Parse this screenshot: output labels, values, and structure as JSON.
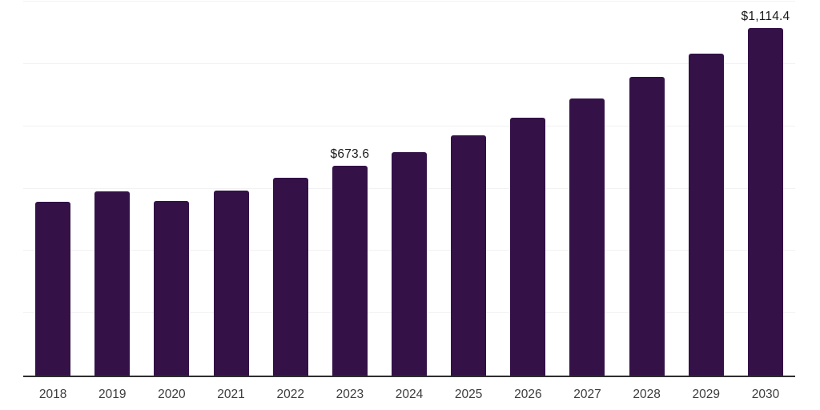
{
  "chart_data": {
    "type": "bar",
    "title": "",
    "xlabel": "",
    "ylabel": "",
    "categories": [
      "2018",
      "2019",
      "2020",
      "2021",
      "2022",
      "2023",
      "2024",
      "2025",
      "2026",
      "2027",
      "2028",
      "2029",
      "2030"
    ],
    "values": [
      558,
      590,
      560,
      594,
      634,
      673.6,
      717,
      771,
      828,
      890,
      958,
      1034,
      1114.4
    ],
    "labeled_points": [
      {
        "category": "2023",
        "label": "$673.6"
      },
      {
        "category": "2030",
        "label": "$1,114.4"
      }
    ],
    "ylim": [
      0,
      1200
    ],
    "gridline_values": [
      0,
      200,
      400,
      600,
      800,
      1000,
      1200
    ],
    "grid": "horizontal",
    "y_axis_tick_labels_visible": false,
    "legend_position": "none"
  },
  "style": {
    "background_color": "#ffffff",
    "bar_color": "#341247",
    "grid_color": "#f2f2f2",
    "axis_line_color": "#2e2e2e",
    "tick_label_color": "#3d3d3d",
    "data_label_color": "#1a1a1a"
  }
}
